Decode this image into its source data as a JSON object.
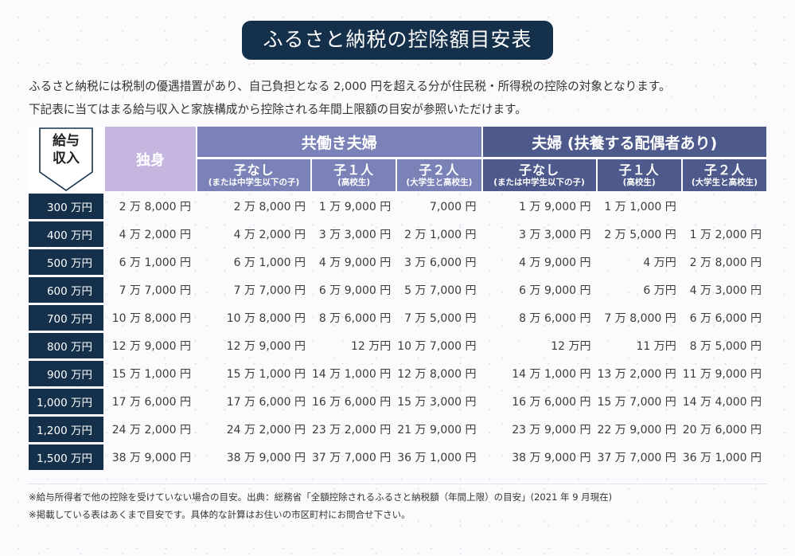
{
  "title": "ふるさと納税の控除額目安表",
  "intro": [
    "ふるさと納税には税制の優遇措置があり、自己負担となる 2,000 円を超える分が住民税・所得税の控除の対象となります。",
    "下記表に当てはまる給与収入と家族構成から控除される年間上限額の目安が参照いただけます。"
  ],
  "table": {
    "income_header_line1": "給与",
    "income_header_line2": "収入",
    "single_header": "独身",
    "group1_header": "共働き夫婦",
    "group2_header": "夫婦 (扶養する配偶者あり)",
    "subheaders": [
      {
        "main": "子なし",
        "note": "(または中学生以下の子)"
      },
      {
        "main": "子１人",
        "note": "(高校生)"
      },
      {
        "main": "子２人",
        "note": "(大学生と高校生)"
      },
      {
        "main": "子なし",
        "note": "(または中学生以下の子)"
      },
      {
        "main": "子１人",
        "note": "(高校生)"
      },
      {
        "main": "子２人",
        "note": "(大学生と高校生)"
      }
    ],
    "rows": [
      {
        "income": "300 万円",
        "values": [
          "2 万 8,000 円",
          "2 万 8,000 円",
          "1 万 9,000 円",
          "7,000 円",
          "1 万 9,000 円",
          "1 万 1,000 円",
          ""
        ]
      },
      {
        "income": "400 万円",
        "values": [
          "4 万 2,000 円",
          "4 万 2,000 円",
          "3 万 3,000 円",
          "2 万 1,000 円",
          "3 万 3,000 円",
          "2 万 5,000 円",
          "1 万 2,000 円"
        ]
      },
      {
        "income": "500 万円",
        "values": [
          "6 万 1,000 円",
          "6 万 1,000 円",
          "4 万 9,000 円",
          "3 万 6,000 円",
          "4 万 9,000 円",
          "4 万円",
          "2 万 8,000 円"
        ]
      },
      {
        "income": "600 万円",
        "values": [
          "7 万 7,000 円",
          "7 万 7,000 円",
          "6 万 9,000 円",
          "5 万 7,000 円",
          "6 万 9,000 円",
          "6 万円",
          "4 万 3,000 円"
        ]
      },
      {
        "income": "700 万円",
        "values": [
          "10 万 8,000 円",
          "10 万 8,000 円",
          "8 万 6,000 円",
          "7 万 5,000 円",
          "8 万 6,000 円",
          "7 万 8,000 円",
          "6 万 6,000 円"
        ]
      },
      {
        "income": "800 万円",
        "values": [
          "12 万 9,000 円",
          "12 万 9,000 円",
          "12 万円",
          "10 万 7,000 円",
          "12 万円",
          "11 万円",
          "8 万 5,000 円"
        ]
      },
      {
        "income": "900 万円",
        "values": [
          "15 万 1,000 円",
          "15 万 1,000 円",
          "14 万 1,000 円",
          "12 万 8,000 円",
          "14 万 1,000 円",
          "13 万 2,000 円",
          "11 万 9,000 円"
        ]
      },
      {
        "income": "1,000 万円",
        "values": [
          "17 万 6,000 円",
          "17 万 6,000 円",
          "16 万 6,000 円",
          "15 万 3,000 円",
          "16 万 6,000 円",
          "15 万 7,000 円",
          "14 万 4,000 円"
        ]
      },
      {
        "income": "1,200 万円",
        "values": [
          "24 万 2,000 円",
          "24 万 2,000 円",
          "23 万 2,000 円",
          "21 万 9,000 円",
          "23 万 9,000 円",
          "22 万 9,000 円",
          "20 万 6,000 円"
        ]
      },
      {
        "income": "1,500 万円",
        "values": [
          "38 万 9,000 円",
          "38 万 9,000 円",
          "37 万 7,000 円",
          "36 万 1,000 円",
          "38 万 9,000 円",
          "37 万 7,000 円",
          "36 万 1,000 円"
        ]
      }
    ]
  },
  "footnotes": [
    "※給与所得者で他の控除を受けていない場合の目安。出典：総務省「全額控除されるふるさと納税額（年間上限）の目安」(2021 年 9 月現在)",
    "※掲載している表はあくまで目安です。具体的な計算はお住いの市区町村にお問合せ下さい。"
  ],
  "colors": {
    "navy": "#15304a",
    "single_header": "#c5b6df",
    "group1": "#7b82b8",
    "group2": "#4f5a8c"
  }
}
